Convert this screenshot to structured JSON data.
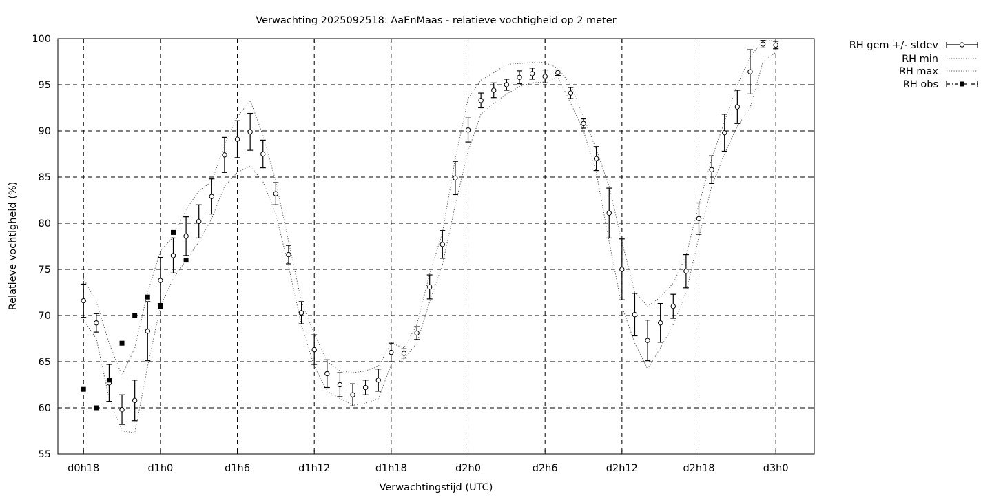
{
  "chart_data": {
    "type": "line",
    "title": "Verwachting 2025092518: AaEnMaas - relatieve vochtigheid op 2 meter",
    "xlabel": "Verwachtingstijd (UTC)",
    "ylabel": "Relatieve vochtigheid (%)",
    "xlim": [
      16,
      75
    ],
    "ylim": [
      55,
      100
    ],
    "x_ticks": [
      {
        "x": 18,
        "label": "d0h18"
      },
      {
        "x": 24,
        "label": "d1h0"
      },
      {
        "x": 30,
        "label": "d1h6"
      },
      {
        "x": 36,
        "label": "d1h12"
      },
      {
        "x": 42,
        "label": "d1h18"
      },
      {
        "x": 48,
        "label": "d2h0"
      },
      {
        "x": 54,
        "label": "d2h6"
      },
      {
        "x": 60,
        "label": "d2h12"
      },
      {
        "x": 66,
        "label": "d2h18"
      },
      {
        "x": 72,
        "label": "d3h0"
      }
    ],
    "y_ticks": [
      55,
      60,
      65,
      70,
      75,
      80,
      85,
      90,
      95,
      100
    ],
    "grid": true,
    "legend_position": "outside-top-right",
    "legend": [
      "RH gem +/- stdev",
      "RH min",
      "RH max",
      "RH obs"
    ],
    "series": [
      {
        "name": "RH gem +/- stdev",
        "style": "open-circle-errorbar",
        "x": [
          18,
          19,
          20,
          21,
          22,
          23,
          24,
          25,
          26,
          27,
          28,
          29,
          30,
          31,
          32,
          33,
          34,
          35,
          36,
          37,
          38,
          39,
          40,
          41,
          42,
          43,
          44,
          45,
          46,
          47,
          48,
          49,
          50,
          51,
          52,
          53,
          54,
          55,
          56,
          57,
          58,
          59,
          60,
          61,
          62,
          63,
          64,
          65,
          66,
          67,
          68,
          69,
          70,
          71,
          72
        ],
        "values": [
          71.6,
          69.2,
          62.7,
          59.8,
          60.8,
          68.3,
          73.8,
          76.5,
          78.6,
          80.2,
          82.9,
          87.4,
          89.1,
          89.9,
          87.5,
          83.2,
          76.6,
          70.3,
          66.3,
          63.7,
          62.5,
          61.4,
          62.2,
          63.0,
          66.0,
          65.9,
          68.1,
          73.1,
          77.7,
          84.9,
          90.1,
          93.3,
          94.4,
          95.0,
          95.8,
          96.2,
          95.9,
          96.3,
          94.1,
          90.8,
          87.0,
          81.1,
          75.0,
          70.1,
          67.3,
          69.2,
          71.0,
          74.8,
          80.5,
          85.8,
          89.8,
          92.6,
          96.4,
          99.4,
          99.3
        ],
        "stdev": [
          1.8,
          1.0,
          2.0,
          1.6,
          2.2,
          3.2,
          2.5,
          1.9,
          2.1,
          1.8,
          1.9,
          1.9,
          2.0,
          2.0,
          1.5,
          1.2,
          1.0,
          1.2,
          1.6,
          1.5,
          1.3,
          1.2,
          0.8,
          1.2,
          1.0,
          0.5,
          0.7,
          1.3,
          1.5,
          1.8,
          1.3,
          0.8,
          0.8,
          0.6,
          0.7,
          0.6,
          0.7,
          0.3,
          0.6,
          0.5,
          1.3,
          2.7,
          3.3,
          2.3,
          2.2,
          2.1,
          1.3,
          1.8,
          1.7,
          1.5,
          2.0,
          1.8,
          2.4,
          0.4,
          0.4
        ]
      },
      {
        "name": "RH min",
        "style": "dotted",
        "x": [
          18,
          19,
          20,
          21,
          22,
          23,
          24,
          25,
          26,
          27,
          28,
          29,
          30,
          31,
          32,
          33,
          34,
          35,
          36,
          37,
          38,
          39,
          40,
          41,
          42,
          43,
          44,
          45,
          46,
          47,
          48,
          49,
          50,
          51,
          52,
          53,
          54,
          55,
          56,
          57,
          58,
          59,
          60,
          61,
          62,
          63,
          64,
          65,
          66,
          67,
          68,
          69,
          70,
          71,
          72
        ],
        "values": [
          69.5,
          67.5,
          61.0,
          57.5,
          57.3,
          64.5,
          71.0,
          74.0,
          76.0,
          78.0,
          80.5,
          84.0,
          85.5,
          86.2,
          84.5,
          81.0,
          75.3,
          69.0,
          64.5,
          61.8,
          61.0,
          60.3,
          60.5,
          61.0,
          64.7,
          65.3,
          67.0,
          71.5,
          75.5,
          82.0,
          87.8,
          91.8,
          93.0,
          94.0,
          94.8,
          95.2,
          95.3,
          95.8,
          93.0,
          90.0,
          85.5,
          78.0,
          71.0,
          67.0,
          64.2,
          66.5,
          69.0,
          72.5,
          78.5,
          84.0,
          87.5,
          90.5,
          92.5,
          97.5,
          98.5
        ]
      },
      {
        "name": "RH max",
        "style": "dotted",
        "x": [
          18,
          19,
          20,
          21,
          22,
          23,
          24,
          25,
          26,
          27,
          28,
          29,
          30,
          31,
          32,
          33,
          34,
          35,
          36,
          37,
          38,
          39,
          40,
          41,
          42,
          43,
          44,
          45,
          46,
          47,
          48,
          49,
          50,
          51,
          52,
          53,
          54,
          55,
          56,
          57,
          58,
          59,
          60,
          61,
          62,
          63,
          64,
          65,
          66,
          67,
          68,
          69,
          70,
          71,
          72
        ],
        "values": [
          74.0,
          71.5,
          67.0,
          63.5,
          66.5,
          72.5,
          77.0,
          78.5,
          81.5,
          83.5,
          84.5,
          88.5,
          91.5,
          93.3,
          89.5,
          84.5,
          78.0,
          71.5,
          68.0,
          65.0,
          64.0,
          63.8,
          64.0,
          64.5,
          67.0,
          66.5,
          69.0,
          74.5,
          79.0,
          87.0,
          93.5,
          95.5,
          96.3,
          97.2,
          97.3,
          97.4,
          97.4,
          96.8,
          95.0,
          91.5,
          88.0,
          84.0,
          78.0,
          72.5,
          71.0,
          72.0,
          73.5,
          76.5,
          82.0,
          87.0,
          91.0,
          95.0,
          98.0,
          99.8,
          99.8
        ]
      },
      {
        "name": "RH obs",
        "style": "filled-square",
        "x": [
          18,
          19,
          20,
          21,
          22,
          23,
          24,
          25,
          26
        ],
        "values": [
          62,
          60,
          63,
          67,
          70,
          72,
          71,
          79,
          76
        ]
      }
    ]
  }
}
